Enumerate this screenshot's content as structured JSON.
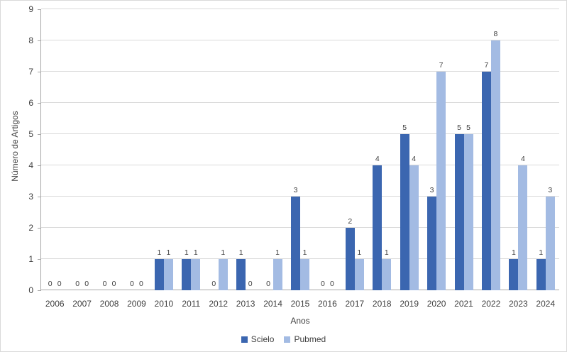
{
  "chart_data": {
    "type": "bar",
    "title": "",
    "xlabel": "Anos",
    "ylabel": "Número de Artigos",
    "categories": [
      "2006",
      "2007",
      "2008",
      "2009",
      "2010",
      "2011",
      "2012",
      "2013",
      "2014",
      "2015",
      "2016",
      "2017",
      "2018",
      "2019",
      "2020",
      "2021",
      "2022",
      "2023",
      "2024"
    ],
    "series": [
      {
        "name": "Scielo",
        "color": "#3b66b0",
        "values": [
          0,
          0,
          0,
          0,
          1,
          1,
          0,
          1,
          0,
          3,
          0,
          2,
          4,
          5,
          3,
          5,
          7,
          1,
          1
        ]
      },
      {
        "name": "Pubmed",
        "color": "#a3bbe3",
        "values": [
          0,
          0,
          0,
          0,
          1,
          1,
          1,
          0,
          1,
          1,
          0,
          1,
          1,
          4,
          7,
          5,
          8,
          4,
          3
        ]
      }
    ],
    "ylim": [
      0,
      9
    ],
    "ytick_step": 1,
    "grid": true,
    "legend_position": "bottom"
  }
}
